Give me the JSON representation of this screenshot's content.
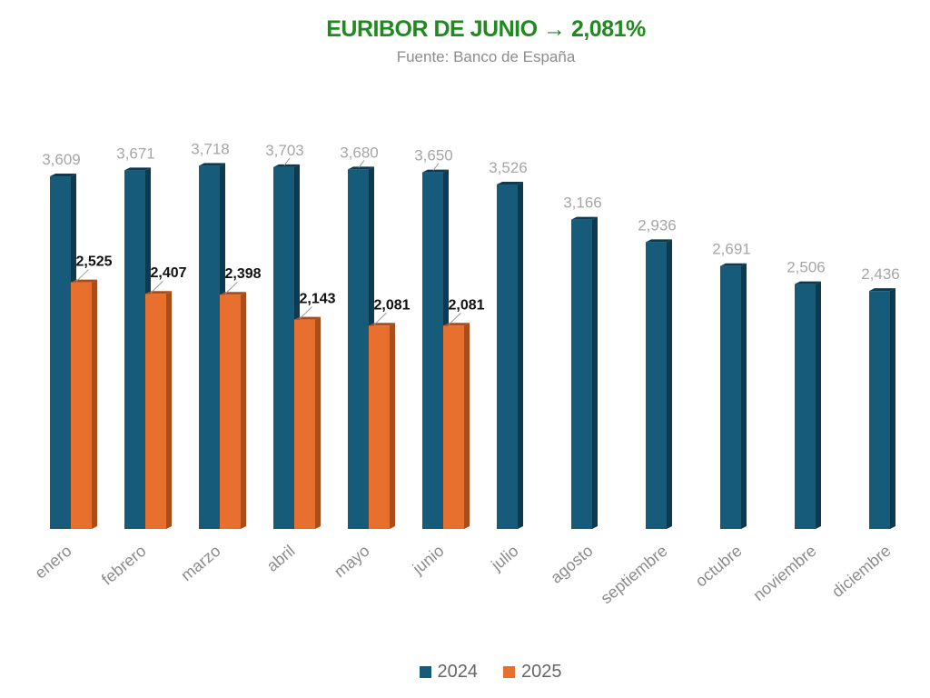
{
  "header": {
    "title": "EURIBOR DE JUNIO → 2,081%",
    "subtitle": "Fuente: Banco de España"
  },
  "colors": {
    "title": "#1f8a1f",
    "subtitle": "#8c8c8c",
    "series_2024": "#165b7a",
    "series_2024_side": "#0c3a51",
    "series_2025": "#e8702f",
    "series_2025_side": "#a84d1c",
    "label_2024": "#a6a6a6",
    "label_2025": "#111111",
    "axis_label": "#8c8c8c"
  },
  "chart_data": {
    "type": "bar",
    "title": "EURIBOR DE JUNIO → 2,081%",
    "subtitle": "Fuente: Banco de España",
    "categories": [
      "enero",
      "febrero",
      "marzo",
      "abril",
      "mayo",
      "junio",
      "julio",
      "agosto",
      "septiembre",
      "octubre",
      "noviembre",
      "diciembre"
    ],
    "series": [
      {
        "name": "2024",
        "values": [
          3.609,
          3.671,
          3.718,
          3.703,
          3.68,
          3.65,
          3.526,
          3.166,
          2.936,
          2.691,
          2.506,
          2.436
        ],
        "labels": [
          "3,609",
          "3,671",
          "3,718",
          "3,703",
          "3,680",
          "3,650",
          "3,526",
          "3,166",
          "2,936",
          "2,691",
          "2,506",
          "2,436"
        ]
      },
      {
        "name": "2025",
        "values": [
          2.525,
          2.407,
          2.398,
          2.143,
          2.081,
          2.081,
          null,
          null,
          null,
          null,
          null,
          null
        ],
        "labels": [
          "2,525",
          "2,407",
          "2,398",
          "2,143",
          "2,081",
          "2,081",
          "",
          "",
          "",
          "",
          "",
          ""
        ]
      }
    ],
    "ylim": [
      0,
      4
    ],
    "grid": false,
    "legend": "bottom-center",
    "data_labels": true,
    "x_label_rotation": -45,
    "style": "3d-bars"
  }
}
